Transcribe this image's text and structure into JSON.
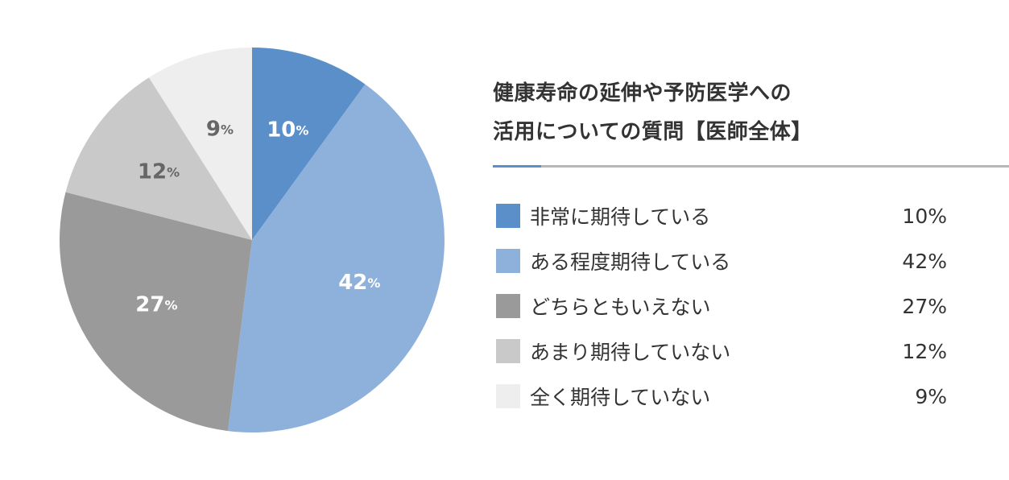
{
  "title": {
    "line1": "健康寿命の延伸や予防医学への",
    "line2": "活用についての質問【医師全体】"
  },
  "accent_color": "#5b8fc9",
  "chart_data": {
    "type": "pie",
    "unit": "%",
    "slices": [
      {
        "label": "非常に期待している",
        "value": 10,
        "value_text": "10%",
        "color": "#5b8fc9",
        "label_color": "#ffffff"
      },
      {
        "label": "ある程度期待している",
        "value": 42,
        "value_text": "42%",
        "color": "#8eb1dc",
        "label_color": "#ffffff"
      },
      {
        "label": "どちらともいえない",
        "value": 27,
        "value_text": "27%",
        "color": "#9a9a9a",
        "label_color": "#ffffff"
      },
      {
        "label": "あまり期待していない",
        "value": 12,
        "value_text": "12%",
        "color": "#c9c9c9",
        "label_color": "#666666"
      },
      {
        "label": "全く期待していない",
        "value": 9,
        "value_text": "9%",
        "color": "#eeeeee",
        "label_color": "#666666"
      }
    ],
    "legend_placement": "right"
  }
}
